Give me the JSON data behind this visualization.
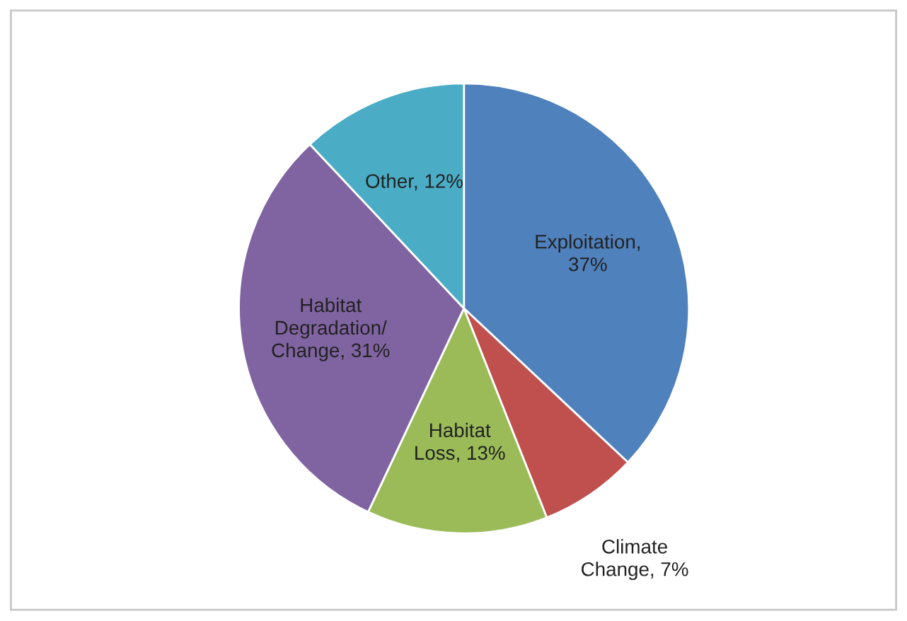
{
  "chart_data": {
    "type": "pie",
    "categories": [
      "Exploitation,\n37%",
      "Climate\nChange, 7%",
      "Habitat\nLoss, 13%",
      "Habitat\nDegradation/\nChange, 31%",
      "Other, 12%"
    ],
    "values": [
      37,
      7,
      13,
      31,
      12
    ],
    "colors": [
      "#4f81bd",
      "#c0504d",
      "#9bbb59",
      "#8064a2",
      "#4bacc6"
    ],
    "legend": false
  }
}
